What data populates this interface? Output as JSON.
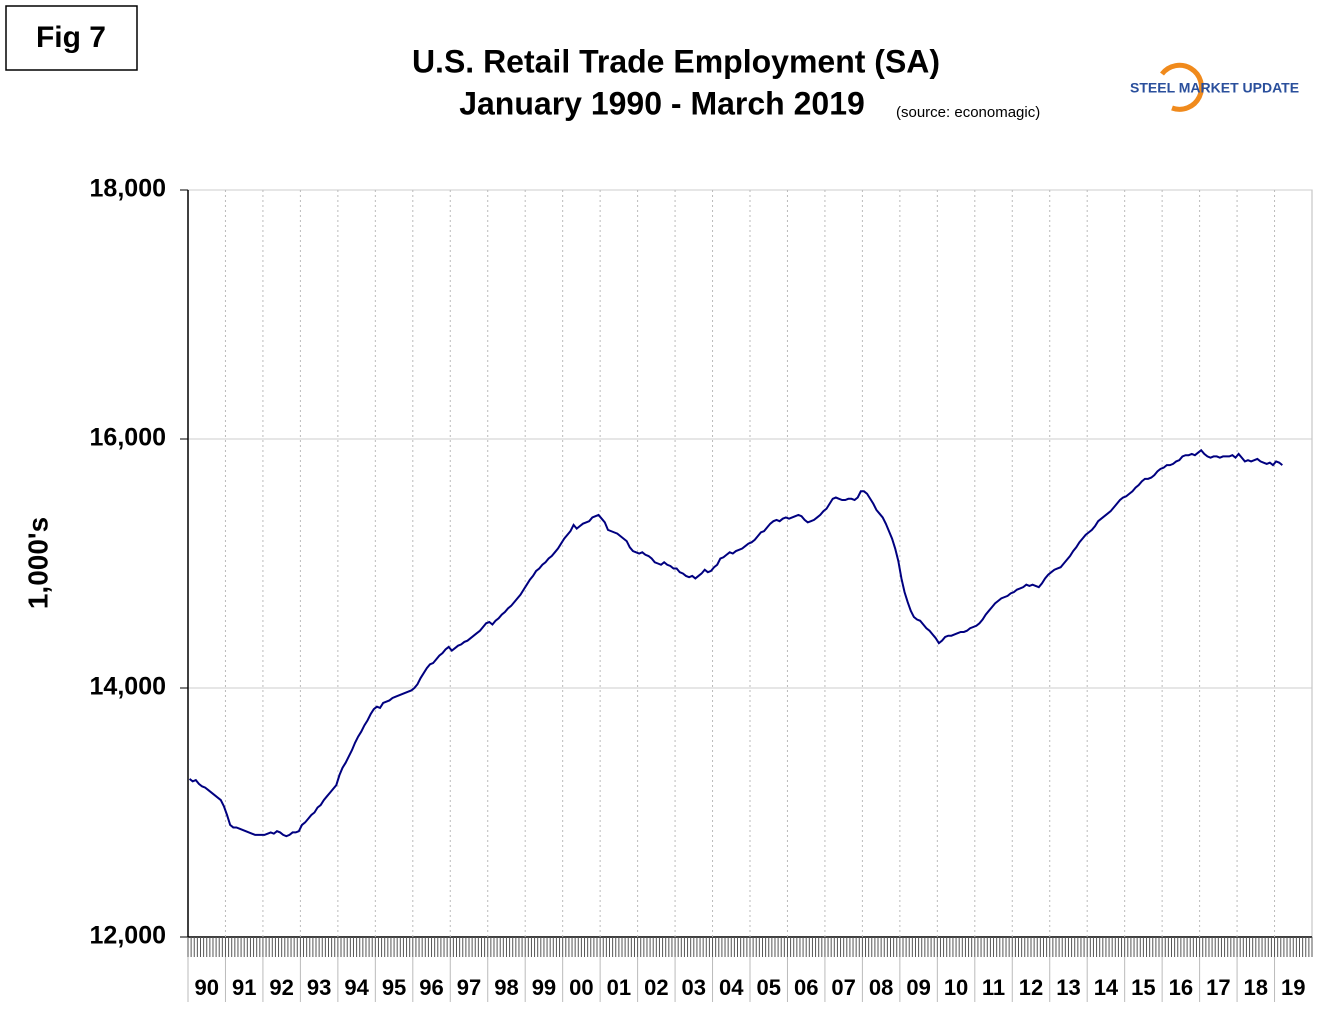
{
  "figure_label": "Fig 7",
  "logo": "STEEL MARKET UPDATE",
  "chart_data": {
    "type": "line",
    "title": "U.S. Retail Trade Employment (SA)",
    "subtitle": "January 1990 - March 2019",
    "source": "(source: economagic)",
    "y_label": "1,000's",
    "ylim": [
      12000,
      18000
    ],
    "yticks": [
      {
        "value": 12000,
        "label": "12,000"
      },
      {
        "value": 14000,
        "label": "14,000"
      },
      {
        "value": 16000,
        "label": "16,000"
      },
      {
        "value": 18000,
        "label": "18,000"
      }
    ],
    "grid": true,
    "categories": [
      "90",
      null,
      null,
      null,
      null,
      null,
      null,
      null,
      null,
      null,
      null,
      null,
      "91",
      null,
      null,
      null,
      null,
      null,
      null,
      null,
      null,
      null,
      null,
      null,
      "92",
      null,
      null,
      null,
      null,
      null,
      null,
      null,
      null,
      null,
      null,
      null,
      "93",
      null,
      null,
      null,
      null,
      null,
      null,
      null,
      null,
      null,
      null,
      null,
      "94",
      null,
      null,
      null,
      null,
      null,
      null,
      null,
      null,
      null,
      null,
      null,
      "95",
      null,
      null,
      null,
      null,
      null,
      null,
      null,
      null,
      null,
      null,
      null,
      "96",
      null,
      null,
      null,
      null,
      null,
      null,
      null,
      null,
      null,
      null,
      null,
      "97",
      null,
      null,
      null,
      null,
      null,
      null,
      null,
      null,
      null,
      null,
      null,
      "98",
      null,
      null,
      null,
      null,
      null,
      null,
      null,
      null,
      null,
      null,
      null,
      "99",
      null,
      null,
      null,
      null,
      null,
      null,
      null,
      null,
      null,
      null,
      null,
      "00",
      null,
      null,
      null,
      null,
      null,
      null,
      null,
      null,
      null,
      null,
      null,
      "01",
      null,
      null,
      null,
      null,
      null,
      null,
      null,
      null,
      null,
      null,
      null,
      "02",
      null,
      null,
      null,
      null,
      null,
      null,
      null,
      null,
      null,
      null,
      null,
      "03",
      null,
      null,
      null,
      null,
      null,
      null,
      null,
      null,
      null,
      null,
      null,
      "04",
      null,
      null,
      null,
      null,
      null,
      null,
      null,
      null,
      null,
      null,
      null,
      "05",
      null,
      null,
      null,
      null,
      null,
      null,
      null,
      null,
      null,
      null,
      null,
      "06",
      null,
      null,
      null,
      null,
      null,
      null,
      null,
      null,
      null,
      null,
      null,
      "07",
      null,
      null,
      null,
      null,
      null,
      null,
      null,
      null,
      null,
      null,
      null,
      "08",
      null,
      null,
      null,
      null,
      null,
      null,
      null,
      null,
      null,
      null,
      null,
      "09",
      null,
      null,
      null,
      null,
      null,
      null,
      null,
      null,
      null,
      null,
      null,
      "10",
      null,
      null,
      null,
      null,
      null,
      null,
      null,
      null,
      null,
      null,
      null,
      "11",
      null,
      null,
      null,
      null,
      null,
      null,
      null,
      null,
      null,
      null,
      null,
      "12",
      null,
      null,
      null,
      null,
      null,
      null,
      null,
      null,
      null,
      null,
      null,
      "13",
      null,
      null,
      null,
      null,
      null,
      null,
      null,
      null,
      null,
      null,
      null,
      "14",
      null,
      null,
      null,
      null,
      null,
      null,
      null,
      null,
      null,
      null,
      null,
      "15",
      null,
      null,
      null,
      null,
      null,
      null,
      null,
      null,
      null,
      null,
      null,
      "16",
      null,
      null,
      null,
      null,
      null,
      null,
      null,
      null,
      null,
      null,
      null,
      "17",
      null,
      null,
      null,
      null,
      null,
      null,
      null,
      null,
      null,
      null,
      null,
      "18",
      null,
      null,
      null,
      null,
      null,
      null,
      null,
      null,
      null,
      null,
      null,
      "19",
      null,
      null
    ],
    "series": [
      {
        "color": "#000080",
        "values": [
          13270,
          13250,
          13260,
          13230,
          13210,
          13200,
          13180,
          13160,
          13140,
          13120,
          13100,
          13050,
          12980,
          12900,
          12880,
          12880,
          12870,
          12860,
          12850,
          12840,
          12830,
          12820,
          12820,
          12820,
          12820,
          12830,
          12840,
          12830,
          12850,
          12840,
          12820,
          12810,
          12820,
          12840,
          12840,
          12850,
          12900,
          12920,
          12950,
          12980,
          13000,
          13040,
          13060,
          13100,
          13130,
          13160,
          13190,
          13220,
          13300,
          13360,
          13400,
          13450,
          13500,
          13560,
          13610,
          13650,
          13700,
          13740,
          13790,
          13830,
          13850,
          13840,
          13880,
          13890,
          13900,
          13920,
          13930,
          13940,
          13950,
          13960,
          13970,
          13980,
          14000,
          14030,
          14080,
          14120,
          14160,
          14190,
          14200,
          14230,
          14260,
          14280,
          14310,
          14330,
          14300,
          14320,
          14340,
          14350,
          14370,
          14380,
          14400,
          14420,
          14440,
          14460,
          14490,
          14520,
          14530,
          14510,
          14540,
          14560,
          14590,
          14610,
          14640,
          14660,
          14690,
          14720,
          14750,
          14790,
          14830,
          14870,
          14900,
          14940,
          14960,
          14990,
          15010,
          15040,
          15060,
          15090,
          15120,
          15160,
          15200,
          15230,
          15260,
          15310,
          15280,
          15300,
          15320,
          15330,
          15340,
          15370,
          15380,
          15390,
          15360,
          15330,
          15270,
          15260,
          15250,
          15240,
          15220,
          15200,
          15180,
          15130,
          15100,
          15090,
          15080,
          15090,
          15070,
          15060,
          15040,
          15010,
          15000,
          14990,
          15010,
          14990,
          14980,
          14960,
          14960,
          14930,
          14920,
          14900,
          14890,
          14900,
          14880,
          14900,
          14920,
          14950,
          14930,
          14940,
          14970,
          14990,
          15040,
          15050,
          15070,
          15090,
          15080,
          15100,
          15110,
          15120,
          15140,
          15160,
          15170,
          15190,
          15220,
          15250,
          15260,
          15290,
          15320,
          15340,
          15350,
          15340,
          15360,
          15370,
          15360,
          15370,
          15380,
          15390,
          15380,
          15350,
          15330,
          15340,
          15350,
          15370,
          15390,
          15420,
          15440,
          15480,
          15520,
          15530,
          15520,
          15510,
          15510,
          15520,
          15520,
          15510,
          15530,
          15580,
          15580,
          15560,
          15520,
          15480,
          15430,
          15400,
          15370,
          15320,
          15260,
          15200,
          15120,
          15020,
          14880,
          14770,
          14690,
          14620,
          14570,
          14550,
          14540,
          14510,
          14480,
          14460,
          14430,
          14400,
          14360,
          14380,
          14410,
          14420,
          14420,
          14430,
          14440,
          14450,
          14450,
          14460,
          14480,
          14490,
          14500,
          14520,
          14550,
          14590,
          14620,
          14650,
          14680,
          14700,
          14720,
          14730,
          14740,
          14760,
          14770,
          14790,
          14800,
          14810,
          14830,
          14820,
          14830,
          14820,
          14810,
          14840,
          14880,
          14910,
          14930,
          14950,
          14960,
          14970,
          15000,
          15030,
          15060,
          15100,
          15130,
          15170,
          15200,
          15230,
          15250,
          15270,
          15300,
          15340,
          15360,
          15380,
          15400,
          15420,
          15450,
          15480,
          15510,
          15530,
          15540,
          15560,
          15580,
          15610,
          15630,
          15660,
          15680,
          15680,
          15690,
          15710,
          15740,
          15760,
          15770,
          15790,
          15790,
          15800,
          15820,
          15830,
          15860,
          15870,
          15870,
          15880,
          15870,
          15890,
          15910,
          15880,
          15860,
          15850,
          15860,
          15860,
          15850,
          15860,
          15860,
          15860,
          15870,
          15850,
          15880,
          15850,
          15820,
          15830,
          15820,
          15830,
          15840,
          15820,
          15810,
          15800,
          15810,
          15790,
          15820,
          15810,
          15790
        ]
      }
    ]
  }
}
